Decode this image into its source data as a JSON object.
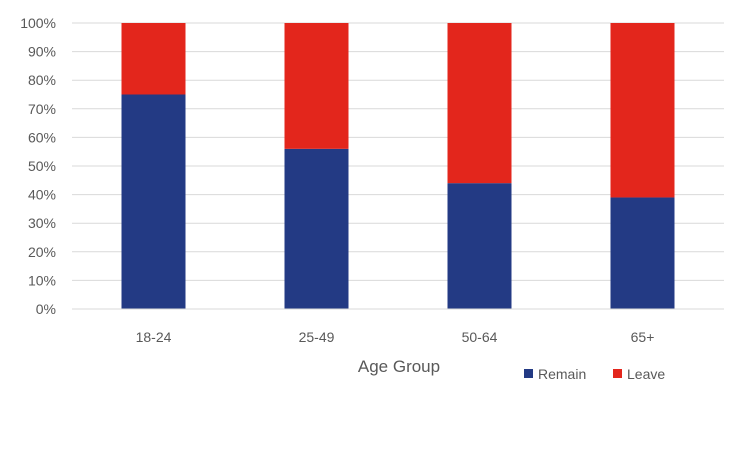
{
  "chart_data": {
    "type": "bar",
    "stacked": true,
    "categories": [
      "18-24",
      "25-49",
      "50-64",
      "65+"
    ],
    "series": [
      {
        "name": "Remain",
        "values": [
          75,
          56,
          44,
          39
        ]
      },
      {
        "name": "Leave",
        "values": [
          25,
          44,
          56,
          61
        ]
      }
    ],
    "colors": {
      "Remain": "#233A84",
      "Leave": "#E3261C"
    },
    "title": "",
    "xlabel": "Age Group",
    "ylabel": "",
    "ylim": [
      0,
      100
    ],
    "yticks": [
      "0%",
      "10%",
      "20%",
      "30%",
      "40%",
      "50%",
      "60%",
      "70%",
      "80%",
      "90%",
      "100%"
    ],
    "grid": true,
    "legend_position": "bottom-right"
  }
}
